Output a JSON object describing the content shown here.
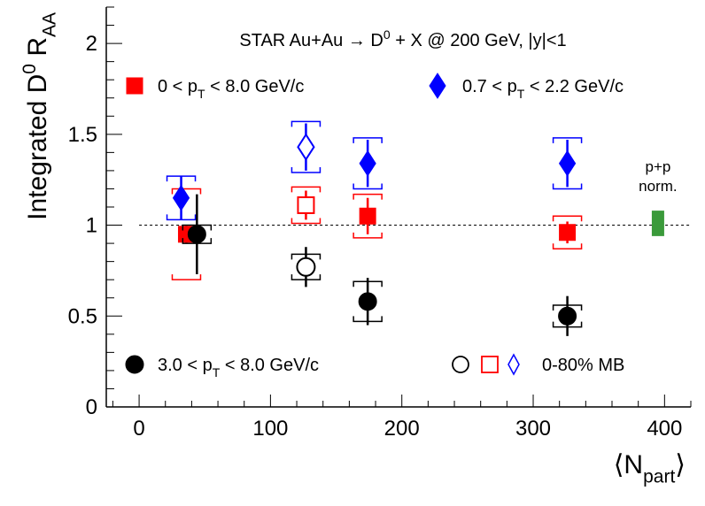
{
  "chart_data": {
    "type": "scatter",
    "title": "STAR Au+Au → D⁰ + X @ 200 GeV,  |y|<1",
    "xlabel": "⟨N_part⟩",
    "ylabel": "Integrated D⁰ R_AA",
    "xlim": [
      -25,
      420
    ],
    "ylim": [
      0,
      2.2
    ],
    "x_ticks": [
      "0",
      "100",
      "200",
      "300",
      "400"
    ],
    "y_ticks": [
      "0",
      "0.5",
      "1",
      "1.5",
      "2"
    ],
    "reference_line": {
      "y": 1,
      "style": "dotted"
    },
    "series": [
      {
        "name": "0 < p_T < 8.0 GeV/c",
        "color": "#ff0000",
        "marker": "square",
        "filled": true,
        "points": [
          {
            "x": 36,
            "y": 0.95,
            "stat": 0.05,
            "sys": 0.25
          },
          {
            "x": 174,
            "y": 1.05,
            "stat": 0.1,
            "sys": 0.12
          },
          {
            "x": 326,
            "y": 0.96,
            "stat": 0.06,
            "sys": 0.09
          }
        ]
      },
      {
        "name": "0.7 < p_T < 2.2 GeV/c",
        "color": "#0000ff",
        "marker": "diamond",
        "filled": true,
        "points": [
          {
            "x": 32,
            "y": 1.15,
            "stat": 0.12,
            "sys": 0.12
          },
          {
            "x": 174,
            "y": 1.34,
            "stat": 0.13,
            "sys": 0.14
          },
          {
            "x": 326,
            "y": 1.34,
            "stat": 0.13,
            "sys": 0.14
          }
        ]
      },
      {
        "name": "3.0 < p_T < 8.0 GeV/c",
        "color": "#000000",
        "marker": "circle",
        "filled": true,
        "points": [
          {
            "x": 44,
            "y": 0.95,
            "stat": 0.22,
            "sys": 0.05
          },
          {
            "x": 174,
            "y": 0.58,
            "stat": 0.13,
            "sys": 0.11
          },
          {
            "x": 326,
            "y": 0.5,
            "stat": 0.11,
            "sys": 0.06
          }
        ]
      },
      {
        "name": "0-80% MB",
        "color": "#ff0000",
        "marker": "square",
        "filled": false,
        "points": [
          {
            "x": 127,
            "y": 1.11,
            "stat": 0.08,
            "sys": 0.1
          }
        ]
      },
      {
        "name": "0-80% MB",
        "color": "#0000ff",
        "marker": "diamond",
        "filled": false,
        "points": [
          {
            "x": 127,
            "y": 1.43,
            "stat": 0.13,
            "sys": 0.14
          }
        ]
      },
      {
        "name": "0-80% MB",
        "color": "#000000",
        "marker": "circle",
        "filled": false,
        "points": [
          {
            "x": 127,
            "y": 0.77,
            "stat": 0.11,
            "sys": 0.07
          }
        ]
      }
    ],
    "normalization_box": {
      "label_line1": "p+p",
      "label_line2": "norm.",
      "x": 395,
      "y_low": 0.94,
      "y_high": 1.08,
      "color": "#3a9a3a"
    },
    "legend": [
      {
        "label": "0 < p_T < 8.0 GeV/c",
        "color": "#ff0000",
        "marker": "square"
      },
      {
        "label": "0.7 < p_T < 2.2 GeV/c",
        "color": "#0000ff",
        "marker": "diamond"
      },
      {
        "label": "3.0 < p_T < 8.0 GeV/c",
        "color": "#000000",
        "marker": "circle"
      },
      {
        "label": "0-80% MB",
        "color": "#000000",
        "marker": "open-set"
      }
    ],
    "grid": false
  }
}
